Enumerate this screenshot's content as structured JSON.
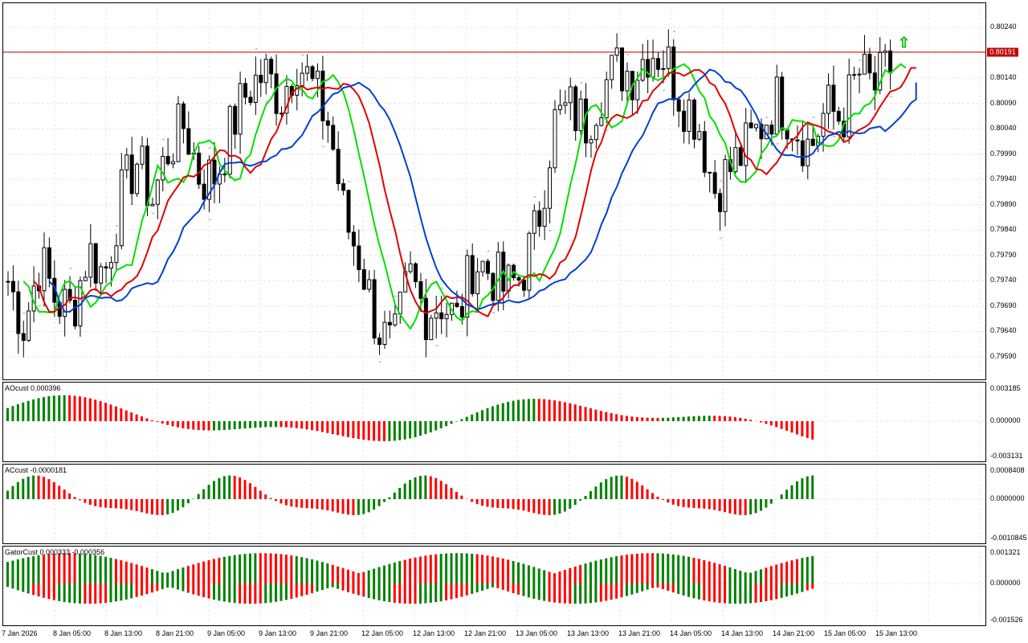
{
  "main": {
    "price_levels": [
      "0.80240",
      "0.80190",
      "0.80140",
      "0.80090",
      "0.80040",
      "0.79990",
      "0.79940",
      "0.79890",
      "0.79840",
      "0.79790",
      "0.79740",
      "0.79690",
      "0.79640",
      "0.79590"
    ],
    "current_price": "0.80191",
    "colors": {
      "bull": "#ffffff",
      "bear": "#000000",
      "wick": "#000000",
      "green_line": "#00e000",
      "red_line": "#e00000",
      "blue_line": "#0040d0",
      "price_line": "#c00000",
      "fractal": "#a0a0a0",
      "arrow": "#20c020"
    }
  },
  "ao": {
    "label": "AOcust 0.000396",
    "levels": [
      "0.003185",
      "0.000000",
      "-0.003131"
    ],
    "colors": {
      "up": "#008000",
      "down": "#ff0000"
    }
  },
  "ac": {
    "label": "ACcust -0.0000181",
    "levels": [
      "0.0008408",
      "0.0000000",
      "-0.0010845"
    ]
  },
  "gator": {
    "label": "GatorCust 0.000333 -0.000356",
    "levels": [
      "0.001321",
      "0.000000",
      "-0.001526"
    ]
  },
  "time_labels": [
    "7 Jan 2026",
    "8 Jan 05:00",
    "8 Jan 13:00",
    "8 Jan 21:00",
    "9 Jan 05:00",
    "9 Jan 13:00",
    "9 Jan 21:00",
    "12 Jan 05:00",
    "12 Jan 13:00",
    "12 Jan 21:00",
    "13 Jan 05:00",
    "13 Jan 13:00",
    "13 Jan 21:00",
    "14 Jan 05:00",
    "14 Jan 13:00",
    "14 Jan 21:00",
    "15 Jan 05:00",
    "15 Jan 13:00"
  ],
  "chart_data": [
    {
      "type": "candlestick",
      "title": "",
      "y_range": [
        0.7955,
        0.8028
      ],
      "close_anchors": [
        0.7974,
        0.7965,
        0.7978,
        0.797,
        0.7968,
        0.798,
        0.7975,
        0.799,
        0.7998,
        0.799,
        0.8,
        0.8005,
        0.7994,
        0.7995,
        0.8005,
        0.8012,
        0.8015,
        0.801,
        0.8018,
        0.8012,
        0.8005,
        0.7986,
        0.7978,
        0.7965,
        0.796,
        0.7975,
        0.7968,
        0.797,
        0.7966,
        0.7978,
        0.7976,
        0.7972,
        0.7975,
        0.7985,
        0.8005,
        0.8008,
        0.8005,
        0.8012,
        0.8016,
        0.8015,
        0.802,
        0.8018,
        0.801,
        0.8006,
        0.7992,
        0.7996,
        0.8,
        0.8005,
        0.801,
        0.8005,
        0.8,
        0.8008,
        0.8006,
        0.8015,
        0.8012,
        0.8016
      ]
    }
  ]
}
